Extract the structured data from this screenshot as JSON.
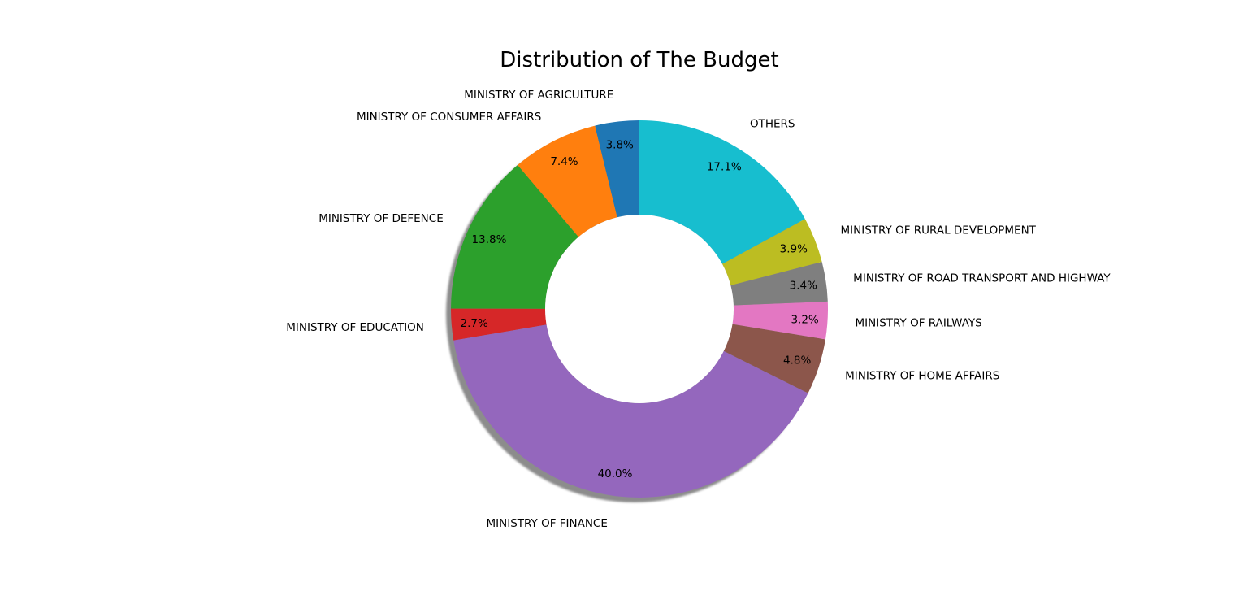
{
  "chart_data": {
    "type": "pie",
    "style": "donut",
    "title": "Distribution of The Budget",
    "start_angle_deg": 90,
    "direction": "counterclockwise",
    "shadow": true,
    "slices": [
      {
        "label": "MINISTRY OF AGRICULTURE",
        "value": 3.8,
        "pct_label": "3.8%",
        "color": "#1f77b4"
      },
      {
        "label": "MINISTRY OF CONSUMER AFFAIRS",
        "value": 7.4,
        "pct_label": "7.4%",
        "color": "#ff7f0e"
      },
      {
        "label": "MINISTRY OF DEFENCE",
        "value": 13.8,
        "pct_label": "13.8%",
        "color": "#2ca02c"
      },
      {
        "label": "MINISTRY OF EDUCATION",
        "value": 2.7,
        "pct_label": "2.7%",
        "color": "#d62728"
      },
      {
        "label": "MINISTRY OF FINANCE",
        "value": 40.0,
        "pct_label": "40.0%",
        "color": "#9467bd"
      },
      {
        "label": "MINISTRY OF HOME AFFAIRS",
        "value": 4.8,
        "pct_label": "4.8%",
        "color": "#8c564b"
      },
      {
        "label": "MINISTRY OF RAILWAYS",
        "value": 3.2,
        "pct_label": "3.2%",
        "color": "#e377c2"
      },
      {
        "label": "MINISTRY OF ROAD TRANSPORT AND HIGHWAY",
        "value": 3.4,
        "pct_label": "3.4%",
        "color": "#7f7f7f"
      },
      {
        "label": "MINISTRY OF RURAL DEVELOPMENT",
        "value": 3.9,
        "pct_label": "3.9%",
        "color": "#bcbd22"
      },
      {
        "label": "OTHERS",
        "value": 17.1,
        "pct_label": "17.1%",
        "color": "#17becf"
      }
    ]
  }
}
